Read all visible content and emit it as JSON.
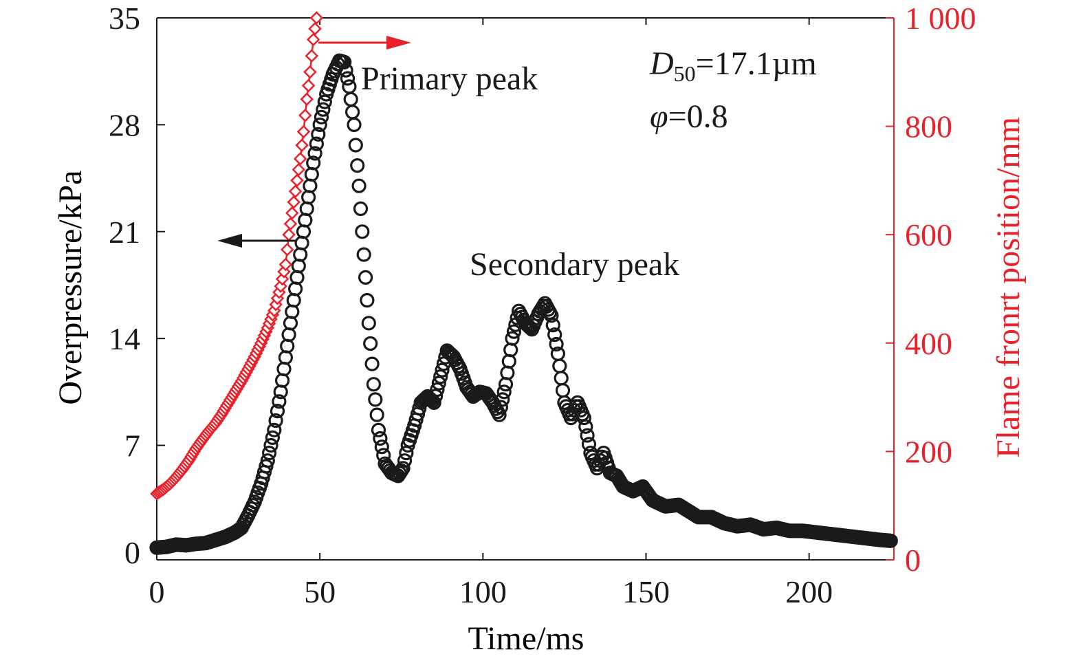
{
  "colors": {
    "pressure": "#1a1a1a",
    "flame": "#e8212a",
    "axis": "#1a1a1a",
    "right_axis": "#e8212a"
  },
  "annotations": {
    "primary": "Primary peak",
    "secondary": "Secondary peak",
    "d50_sym": "D",
    "d50_sub": "50",
    "d50_val": "=17.1µm",
    "phi_sym": "φ",
    "phi_val": "=0.8"
  },
  "chart_data": {
    "type": "scatter",
    "title": "",
    "xlabel": "Time/ms",
    "ylabel": "Overpressure/kPa",
    "y2label": "Flame fronrt position/mm",
    "xlim": [
      0,
      226
    ],
    "ylim": [
      -0.5,
      35
    ],
    "y2lim": [
      0,
      1000
    ],
    "xticks": [
      0,
      50,
      100,
      150,
      200
    ],
    "xtick_labels": [
      "0",
      "50",
      "100",
      "150",
      "200"
    ],
    "yticks": [
      0,
      7,
      14,
      21,
      28,
      35
    ],
    "ytick_labels": [
      "0",
      "7",
      "14",
      "21",
      "28",
      "35"
    ],
    "y2ticks": [
      0,
      200,
      400,
      600,
      800,
      1000
    ],
    "y2tick_labels": [
      "0",
      "200",
      "400",
      "600",
      "800",
      "1 000"
    ],
    "grid": false,
    "series": [
      {
        "name": "",
        "axis": "left",
        "marker": "circle",
        "points": [
          [
            0,
            0.3
          ],
          [
            3,
            0.35
          ],
          [
            6,
            0.5
          ],
          [
            9,
            0.45
          ],
          [
            12,
            0.55
          ],
          [
            15,
            0.6
          ],
          [
            18,
            0.8
          ],
          [
            21,
            1.0
          ],
          [
            24,
            1.3
          ],
          [
            26,
            1.6
          ],
          [
            28,
            2.4
          ],
          [
            30,
            3.3
          ],
          [
            32,
            4.5
          ],
          [
            34,
            6.0
          ],
          [
            36,
            8.0
          ],
          [
            38,
            10.5
          ],
          [
            40,
            13.5
          ],
          [
            42,
            16.5
          ],
          [
            44,
            19.5
          ],
          [
            46,
            22.5
          ],
          [
            48,
            25.5
          ],
          [
            50,
            28.0
          ],
          [
            52,
            30.0
          ],
          [
            54,
            31.3
          ],
          [
            56,
            32.2
          ],
          [
            57.5,
            32.1
          ],
          [
            59,
            30.5
          ],
          [
            60.5,
            28.0
          ],
          [
            62,
            24.0
          ],
          [
            63.5,
            19.5
          ],
          [
            65,
            15.0
          ],
          [
            66.5,
            11.0
          ],
          [
            68,
            8.0
          ],
          [
            70,
            5.8
          ],
          [
            72,
            5.2
          ],
          [
            74,
            5.0
          ],
          [
            75.5,
            5.5
          ],
          [
            77,
            7.0
          ],
          [
            79,
            8.3
          ],
          [
            81,
            9.8
          ],
          [
            83,
            10.2
          ],
          [
            85,
            9.8
          ],
          [
            87,
            11.5
          ],
          [
            89,
            13.2
          ],
          [
            91,
            12.8
          ],
          [
            93,
            12.0
          ],
          [
            95,
            10.8
          ],
          [
            97,
            10.2
          ],
          [
            99,
            10.5
          ],
          [
            101,
            10.4
          ],
          [
            103,
            9.8
          ],
          [
            105,
            9.0
          ],
          [
            107,
            11.0
          ],
          [
            109,
            14.0
          ],
          [
            111,
            15.8
          ],
          [
            113,
            15.0
          ],
          [
            115,
            14.6
          ],
          [
            117,
            15.6
          ],
          [
            119,
            16.3
          ],
          [
            121,
            15.5
          ],
          [
            123,
            13.0
          ],
          [
            125,
            9.8
          ],
          [
            127,
            8.8
          ],
          [
            129,
            9.8
          ],
          [
            131,
            8.8
          ],
          [
            133,
            6.5
          ],
          [
            135,
            5.5
          ],
          [
            137,
            6.5
          ],
          [
            139,
            5.2
          ],
          [
            141,
            5.0
          ],
          [
            143,
            4.3
          ],
          [
            146,
            4.0
          ],
          [
            149,
            4.3
          ],
          [
            152,
            3.4
          ],
          [
            156,
            3.0
          ],
          [
            160,
            3.1
          ],
          [
            163,
            2.7
          ],
          [
            166,
            2.3
          ],
          [
            170,
            2.3
          ],
          [
            174,
            1.9
          ],
          [
            178,
            1.7
          ],
          [
            182,
            1.8
          ],
          [
            186,
            1.5
          ],
          [
            190,
            1.6
          ],
          [
            194,
            1.4
          ],
          [
            198,
            1.4
          ],
          [
            202,
            1.3
          ],
          [
            206,
            1.2
          ],
          [
            210,
            1.1
          ],
          [
            214,
            1.0
          ],
          [
            218,
            0.9
          ],
          [
            222,
            0.8
          ],
          [
            225,
            0.75
          ]
        ]
      },
      {
        "name": "",
        "axis": "right",
        "marker": "diamond",
        "points": [
          [
            0,
            122
          ],
          [
            2,
            130
          ],
          [
            4,
            140
          ],
          [
            6,
            153
          ],
          [
            8,
            168
          ],
          [
            10,
            185
          ],
          [
            12,
            205
          ],
          [
            14,
            222
          ],
          [
            16,
            238
          ],
          [
            18,
            252
          ],
          [
            20,
            270
          ],
          [
            22,
            290
          ],
          [
            24,
            310
          ],
          [
            26,
            330
          ],
          [
            28,
            352
          ],
          [
            30,
            375
          ],
          [
            32,
            400
          ],
          [
            34,
            428
          ],
          [
            36,
            460
          ],
          [
            38,
            505
          ],
          [
            39.5,
            545
          ],
          [
            40.5,
            600
          ],
          [
            42,
            660
          ],
          [
            43,
            700
          ],
          [
            44,
            740
          ],
          [
            45,
            790
          ],
          [
            46,
            850
          ],
          [
            47,
            900
          ],
          [
            48,
            960
          ],
          [
            49,
            1000
          ]
        ]
      }
    ]
  }
}
